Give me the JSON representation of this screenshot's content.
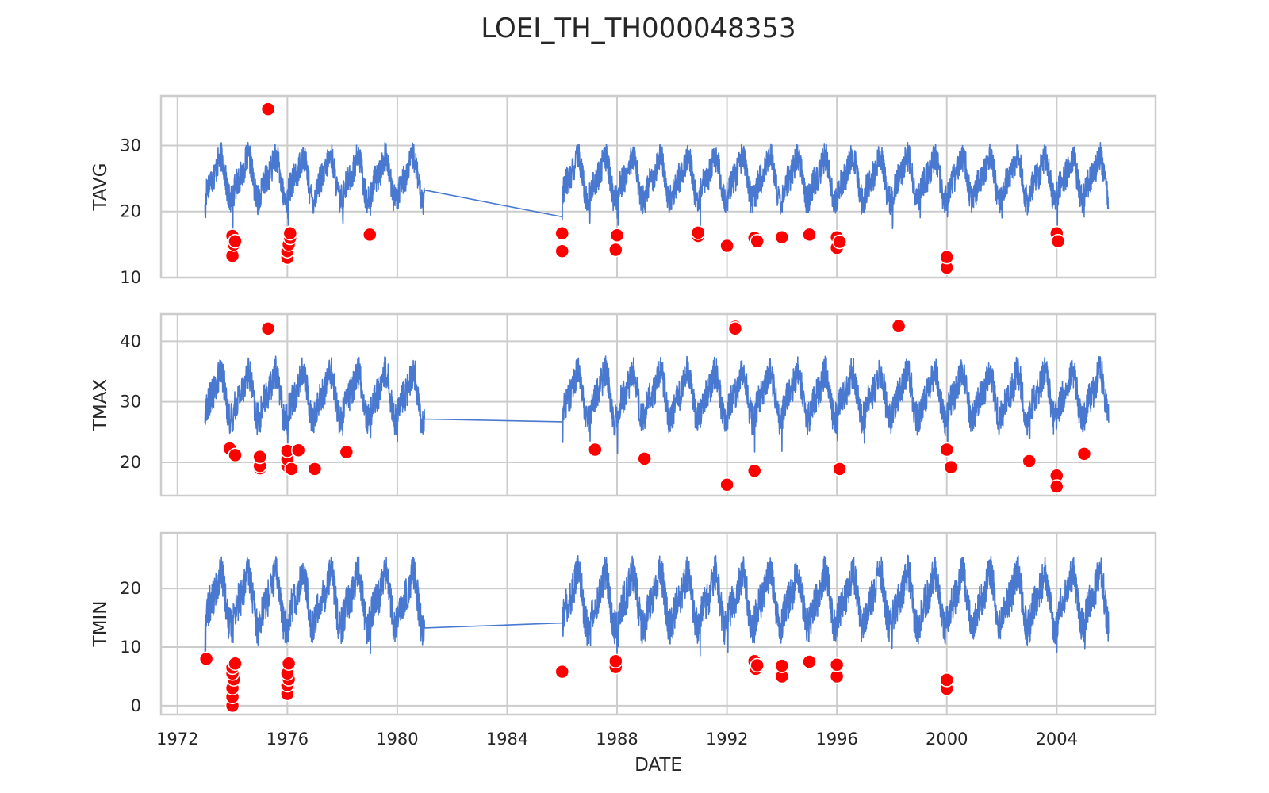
{
  "chart_data": {
    "type": "line",
    "title": "LOEI_TH_TH000048353",
    "xlabel": "DATE",
    "xlim": [
      1971.4,
      2007.6
    ],
    "x_ticks": [
      "1972",
      "1976",
      "1980",
      "1984",
      "1988",
      "1992",
      "1996",
      "2000",
      "2004"
    ],
    "x_tick_values": [
      1972,
      1976,
      1980,
      1984,
      1988,
      1992,
      1996,
      2000,
      2004
    ],
    "grid": true,
    "marker_color": "#ff0000",
    "line_color": "#4878cf",
    "data_range": {
      "start": 1973.0,
      "gap_start": 1981.0,
      "gap_end": 1986.0,
      "end": 2005.9
    },
    "panels": [
      {
        "name": "TAVG",
        "ylabel": "TAVG",
        "ylim": [
          10,
          37.5
        ],
        "yticks": [
          "10",
          "20",
          "30"
        ],
        "ytick_values": [
          10,
          20,
          30
        ],
        "series": {
          "name": "TAVG",
          "seasonal_min": 20,
          "seasonal_max": 30,
          "mean": 26
        },
        "outliers": [
          {
            "x": 1974.0,
            "y": 13.3
          },
          {
            "x": 1974.05,
            "y": 15.0
          },
          {
            "x": 1974.0,
            "y": 16.3
          },
          {
            "x": 1974.1,
            "y": 15.5
          },
          {
            "x": 1975.3,
            "y": 35.5
          },
          {
            "x": 1976.0,
            "y": 13.0
          },
          {
            "x": 1976.0,
            "y": 14.0
          },
          {
            "x": 1976.05,
            "y": 15.0
          },
          {
            "x": 1976.1,
            "y": 16.0
          },
          {
            "x": 1976.1,
            "y": 16.7
          },
          {
            "x": 1979.0,
            "y": 16.5
          },
          {
            "x": 1986.0,
            "y": 14.0
          },
          {
            "x": 1986.0,
            "y": 16.7
          },
          {
            "x": 1987.95,
            "y": 14.2
          },
          {
            "x": 1988.0,
            "y": 16.4
          },
          {
            "x": 1990.95,
            "y": 16.3
          },
          {
            "x": 1990.95,
            "y": 16.8
          },
          {
            "x": 1992.0,
            "y": 14.8
          },
          {
            "x": 1993.0,
            "y": 16.0
          },
          {
            "x": 1993.1,
            "y": 15.5
          },
          {
            "x": 1994.0,
            "y": 16.1
          },
          {
            "x": 1995.0,
            "y": 16.5
          },
          {
            "x": 1996.0,
            "y": 14.5
          },
          {
            "x": 1996.0,
            "y": 16.1
          },
          {
            "x": 1996.1,
            "y": 15.4
          },
          {
            "x": 2000.0,
            "y": 11.5
          },
          {
            "x": 2000.0,
            "y": 13.1
          },
          {
            "x": 2004.0,
            "y": 16.7
          },
          {
            "x": 2004.05,
            "y": 15.5
          }
        ]
      },
      {
        "name": "TMAX",
        "ylabel": "TMAX",
        "ylim": [
          14.5,
          44.5
        ],
        "yticks": [
          "20",
          "30",
          "40"
        ],
        "ytick_values": [
          20,
          30,
          40
        ],
        "series": {
          "name": "TMAX",
          "seasonal_min": 25,
          "seasonal_max": 37,
          "mean": 31
        },
        "outliers": [
          {
            "x": 1973.9,
            "y": 22.3
          },
          {
            "x": 1974.1,
            "y": 21.2
          },
          {
            "x": 1975.0,
            "y": 19.0
          },
          {
            "x": 1975.0,
            "y": 19.4
          },
          {
            "x": 1975.0,
            "y": 20.9
          },
          {
            "x": 1975.3,
            "y": 42.1
          },
          {
            "x": 1976.0,
            "y": 19.4
          },
          {
            "x": 1976.0,
            "y": 20.5
          },
          {
            "x": 1976.0,
            "y": 21.9
          },
          {
            "x": 1976.15,
            "y": 18.9
          },
          {
            "x": 1976.4,
            "y": 22.0
          },
          {
            "x": 1977.0,
            "y": 18.9
          },
          {
            "x": 1978.15,
            "y": 21.7
          },
          {
            "x": 1987.2,
            "y": 22.1
          },
          {
            "x": 1989.0,
            "y": 20.6
          },
          {
            "x": 1992.0,
            "y": 16.3
          },
          {
            "x": 1992.3,
            "y": 42.4
          },
          {
            "x": 1992.3,
            "y": 42.1
          },
          {
            "x": 1993.0,
            "y": 18.6
          },
          {
            "x": 1996.1,
            "y": 18.9
          },
          {
            "x": 1998.25,
            "y": 42.5
          },
          {
            "x": 2000.0,
            "y": 22.1
          },
          {
            "x": 2000.15,
            "y": 19.2
          },
          {
            "x": 2003.0,
            "y": 20.2
          },
          {
            "x": 2004.0,
            "y": 17.8
          },
          {
            "x": 2004.0,
            "y": 16.0
          },
          {
            "x": 2005.0,
            "y": 21.4
          }
        ]
      },
      {
        "name": "TMIN",
        "ylabel": "TMIN",
        "ylim": [
          -1.5,
          29.5
        ],
        "yticks": [
          "0",
          "10",
          "20"
        ],
        "ytick_values": [
          0,
          10,
          20
        ],
        "series": {
          "name": "TMIN",
          "seasonal_min": 11,
          "seasonal_max": 25,
          "mean": 21
        },
        "outliers": [
          {
            "x": 1973.05,
            "y": 8.0
          },
          {
            "x": 1974.0,
            "y": 0.0
          },
          {
            "x": 1974.0,
            "y": 1.5
          },
          {
            "x": 1974.0,
            "y": 3.0
          },
          {
            "x": 1974.05,
            "y": 4.5
          },
          {
            "x": 1974.0,
            "y": 5.5
          },
          {
            "x": 1974.0,
            "y": 6.5
          },
          {
            "x": 1974.1,
            "y": 7.2
          },
          {
            "x": 1976.0,
            "y": 2.0
          },
          {
            "x": 1976.0,
            "y": 3.5
          },
          {
            "x": 1976.05,
            "y": 4.5
          },
          {
            "x": 1976.0,
            "y": 5.5
          },
          {
            "x": 1976.05,
            "y": 7.2
          },
          {
            "x": 1986.0,
            "y": 5.8
          },
          {
            "x": 1987.95,
            "y": 6.6
          },
          {
            "x": 1987.95,
            "y": 7.6
          },
          {
            "x": 1993.0,
            "y": 7.6
          },
          {
            "x": 1993.05,
            "y": 6.3
          },
          {
            "x": 1993.1,
            "y": 6.9
          },
          {
            "x": 1994.0,
            "y": 5.0
          },
          {
            "x": 1994.0,
            "y": 6.8
          },
          {
            "x": 1995.0,
            "y": 7.5
          },
          {
            "x": 1996.0,
            "y": 5.0
          },
          {
            "x": 1996.0,
            "y": 7.0
          },
          {
            "x": 2000.0,
            "y": 2.9
          },
          {
            "x": 2000.0,
            "y": 4.4
          }
        ]
      }
    ]
  }
}
